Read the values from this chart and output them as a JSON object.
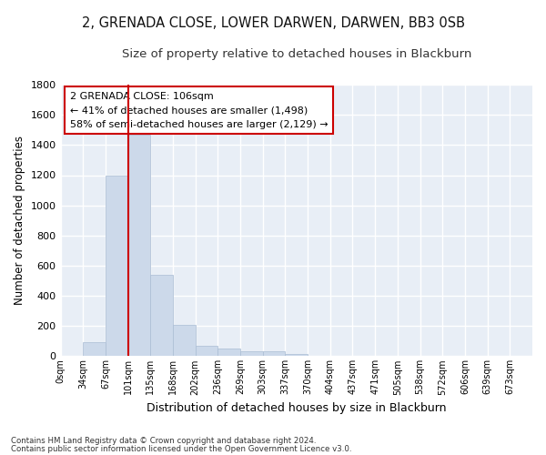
{
  "title1": "2, GRENADA CLOSE, LOWER DARWEN, DARWEN, BB3 0SB",
  "title2": "Size of property relative to detached houses in Blackburn",
  "xlabel": "Distribution of detached houses by size in Blackburn",
  "ylabel": "Number of detached properties",
  "bar_values": [
    0,
    90,
    1200,
    1470,
    540,
    205,
    70,
    50,
    35,
    30,
    15,
    0,
    0,
    0,
    0,
    0,
    0,
    0,
    0,
    0,
    0
  ],
  "bar_labels": [
    "0sqm",
    "34sqm",
    "67sqm",
    "101sqm",
    "135sqm",
    "168sqm",
    "202sqm",
    "236sqm",
    "269sqm",
    "303sqm",
    "337sqm",
    "370sqm",
    "404sqm",
    "437sqm",
    "471sqm",
    "505sqm",
    "538sqm",
    "572sqm",
    "606sqm",
    "639sqm",
    "673sqm"
  ],
  "bar_color": "#ccd9ea",
  "bar_edgecolor": "#aabdd4",
  "red_line_x": 3,
  "annotation_text1": "2 GRENADA CLOSE: 106sqm",
  "annotation_text2": "← 41% of detached houses are smaller (1,498)",
  "annotation_text3": "58% of semi-detached houses are larger (2,129) →",
  "annotation_box_color": "#ffffff",
  "annotation_box_edgecolor": "#cc0000",
  "footer1": "Contains HM Land Registry data © Crown copyright and database right 2024.",
  "footer2": "Contains public sector information licensed under the Open Government Licence v3.0.",
  "ylim": [
    0,
    1800
  ],
  "yticks": [
    0,
    200,
    400,
    600,
    800,
    1000,
    1200,
    1400,
    1600,
    1800
  ],
  "bg_color": "#e8eef6",
  "grid_color": "#ffffff",
  "title1_fontsize": 10.5,
  "title2_fontsize": 9.5,
  "xlabel_fontsize": 9,
  "ylabel_fontsize": 8.5
}
